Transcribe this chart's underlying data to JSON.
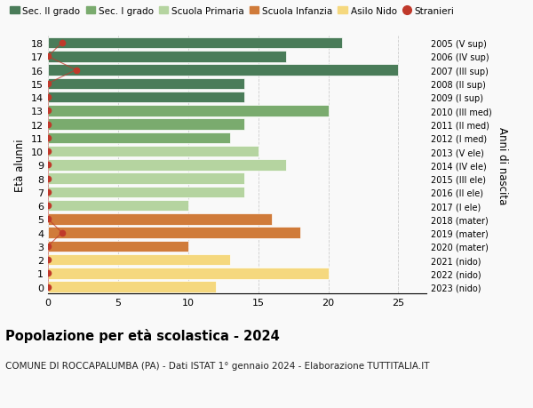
{
  "ages": [
    18,
    17,
    16,
    15,
    14,
    13,
    12,
    11,
    10,
    9,
    8,
    7,
    6,
    5,
    4,
    3,
    2,
    1,
    0
  ],
  "right_labels": [
    "2005 (V sup)",
    "2006 (IV sup)",
    "2007 (III sup)",
    "2008 (II sup)",
    "2009 (I sup)",
    "2010 (III med)",
    "2011 (II med)",
    "2012 (I med)",
    "2013 (V ele)",
    "2014 (IV ele)",
    "2015 (III ele)",
    "2016 (II ele)",
    "2017 (I ele)",
    "2018 (mater)",
    "2019 (mater)",
    "2020 (mater)",
    "2021 (nido)",
    "2022 (nido)",
    "2023 (nido)"
  ],
  "bar_values": [
    21,
    17,
    25,
    14,
    14,
    20,
    14,
    13,
    15,
    17,
    14,
    14,
    10,
    16,
    18,
    10,
    13,
    20,
    12
  ],
  "stranieri_x": [
    1,
    0,
    2,
    0,
    0,
    0,
    0,
    0,
    0,
    0,
    0,
    0,
    0,
    0,
    1,
    0,
    0,
    0,
    0
  ],
  "bar_colors": [
    "#4a7c59",
    "#4a7c59",
    "#4a7c59",
    "#4a7c59",
    "#4a7c59",
    "#7aab6e",
    "#7aab6e",
    "#7aab6e",
    "#b5d4a0",
    "#b5d4a0",
    "#b5d4a0",
    "#b5d4a0",
    "#b5d4a0",
    "#d07b3a",
    "#d07b3a",
    "#d07b3a",
    "#f5d87e",
    "#f5d87e",
    "#f5d87e"
  ],
  "legend_labels": [
    "Sec. II grado",
    "Sec. I grado",
    "Scuola Primaria",
    "Scuola Infanzia",
    "Asilo Nido",
    "Stranieri"
  ],
  "legend_colors": [
    "#4a7c59",
    "#7aab6e",
    "#b5d4a0",
    "#d07b3a",
    "#f5d87e",
    "#c0392b"
  ],
  "title": "Popolazione per età scolastica - 2024",
  "subtitle": "COMUNE DI ROCCAPALUMBA (PA) - Dati ISTAT 1° gennaio 2024 - Elaborazione TUTTITALIA.IT",
  "ylabel": "Età alunni",
  "right_ylabel": "Anni di nascita",
  "xlim": [
    0,
    27
  ],
  "xticks": [
    0,
    5,
    10,
    15,
    20,
    25
  ],
  "background_color": "#f9f9f9",
  "grid_color": "#cccccc",
  "stranieri_color": "#c0392b"
}
